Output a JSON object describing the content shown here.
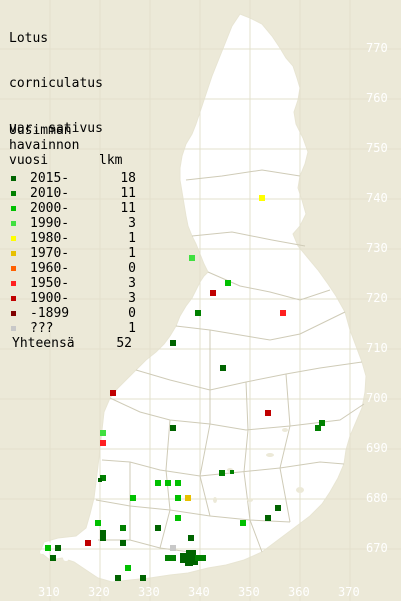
{
  "title": [
    "Lotus",
    "corniculatus",
    "var. sativus"
  ],
  "legend": {
    "header": [
      "Uusimman",
      "havainnon",
      "vuosi"
    ],
    "count_header": "lkm",
    "items": [
      {
        "label": "2015-",
        "count": "18",
        "color": "#006400"
      },
      {
        "label": "2010-",
        "count": "11",
        "color": "#008000"
      },
      {
        "label": "2000-",
        "count": "11",
        "color": "#00c000"
      },
      {
        "label": "1990-",
        "count": "3",
        "color": "#40e040"
      },
      {
        "label": "1980-",
        "count": "1",
        "color": "#ffff00"
      },
      {
        "label": "1970-",
        "count": "1",
        "color": "#e8c000"
      },
      {
        "label": "1960-",
        "count": "0",
        "color": "#ff6000"
      },
      {
        "label": "1950-",
        "count": "3",
        "color": "#ff2020"
      },
      {
        "label": "1900-",
        "count": "3",
        "color": "#c00000"
      },
      {
        "label": "-1899",
        "count": "0",
        "color": "#800000"
      },
      {
        "label": "???",
        "count": "1",
        "color": "#c8c8c8"
      }
    ],
    "total_label": "Yhteensä",
    "total_count": "52"
  },
  "y_ticks": [
    "770",
    "760",
    "750",
    "740",
    "730",
    "720",
    "710",
    "700",
    "690",
    "680",
    "670"
  ],
  "x_ticks": [
    "310",
    "320",
    "330",
    "340",
    "350",
    "360",
    "370"
  ],
  "colors": {
    "background": "#ece9d8",
    "land": "#ffffff",
    "grid": "#e6e3d0",
    "borders": "#c8c4b0"
  }
}
